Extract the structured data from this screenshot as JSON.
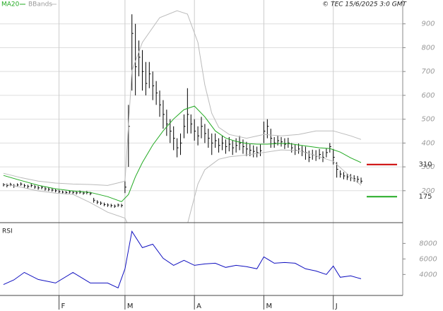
{
  "chart_data": [
    {
      "type": "ohlc",
      "copyright": "© TEC 15/6/2025 3:0 GMT",
      "xlim": [
        -1,
        115
      ],
      "xticks": [
        {
          "value": 16,
          "label": "F"
        },
        {
          "value": 35,
          "label": "M"
        },
        {
          "value": 55,
          "label": "A"
        },
        {
          "value": 75,
          "label": "M"
        },
        {
          "value": 95,
          "label": "J"
        }
      ],
      "ylim": [
        66,
        1000
      ],
      "yticks": [
        200,
        300,
        400,
        500,
        600,
        700,
        800,
        900
      ],
      "grid": true,
      "bar_color": "#000000",
      "x": [
        0,
        1,
        2,
        3,
        4,
        5,
        6,
        7,
        8,
        9,
        10,
        11,
        12,
        13,
        14,
        15,
        16,
        17,
        18,
        19,
        20,
        21,
        22,
        23,
        24,
        25,
        26,
        27,
        28,
        29,
        30,
        31,
        32,
        33,
        34,
        35,
        36,
        37,
        38,
        39,
        40,
        41,
        42,
        43,
        44,
        45,
        46,
        47,
        48,
        49,
        50,
        51,
        52,
        53,
        54,
        55,
        56,
        57,
        58,
        59,
        60,
        61,
        62,
        63,
        64,
        65,
        66,
        67,
        68,
        69,
        70,
        71,
        72,
        73,
        74,
        75,
        76,
        77,
        78,
        79,
        80,
        81,
        82,
        83,
        84,
        85,
        86,
        87,
        88,
        89,
        90,
        91,
        92,
        93,
        94,
        95,
        96,
        97,
        98,
        99,
        100,
        101,
        102,
        103
      ],
      "high": [
        232,
        230,
        233,
        228,
        231,
        235,
        229,
        225,
        229,
        224,
        220,
        221,
        216,
        214,
        211,
        207,
        203,
        200,
        199,
        202,
        200,
        198,
        201,
        197,
        199,
        195,
        170,
        160,
        155,
        150,
        147,
        145,
        142,
        146,
        145,
        245,
        560,
        940,
        900,
        830,
        790,
        740,
        740,
        700,
        660,
        620,
        580,
        540,
        500,
        470,
        420,
        440,
        520,
        630,
        520,
        500,
        470,
        510,
        480,
        460,
        440,
        440,
        420,
        430,
        415,
        425,
        410,
        420,
        430,
        415,
        405,
        395,
        390,
        385,
        395,
        490,
        500,
        460,
        425,
        430,
        425,
        420,
        422,
        400,
        395,
        398,
        388,
        385,
        368,
        372,
        370,
        375,
        365,
        378,
        400,
        375,
        320,
        285,
        278,
        272,
        270,
        265,
        262,
        255
      ],
      "low": [
        218,
        214,
        219,
        212,
        216,
        221,
        213,
        210,
        214,
        208,
        204,
        206,
        200,
        198,
        196,
        193,
        189,
        187,
        185,
        188,
        186,
        184,
        187,
        183,
        185,
        181,
        150,
        144,
        140,
        135,
        132,
        130,
        128,
        132,
        130,
        190,
        300,
        620,
        600,
        680,
        620,
        600,
        630,
        580,
        560,
        510,
        460,
        430,
        400,
        370,
        340,
        350,
        420,
        440,
        440,
        410,
        390,
        420,
        400,
        380,
        350,
        380,
        360,
        370,
        355,
        365,
        350,
        360,
        370,
        355,
        345,
        345,
        340,
        340,
        345,
        400,
        420,
        380,
        380,
        390,
        385,
        375,
        380,
        360,
        350,
        355,
        345,
        330,
        320,
        330,
        325,
        332,
        320,
        340,
        360,
        310,
        255,
        255,
        248,
        245,
        240,
        238,
        232,
        230
      ],
      "close": [
        225,
        222,
        226,
        220,
        224,
        228,
        221,
        218,
        222,
        216,
        212,
        214,
        208,
        206,
        203,
        200,
        196,
        194,
        192,
        195,
        193,
        191,
        194,
        190,
        192,
        188,
        160,
        152,
        148,
        142,
        140,
        138,
        135,
        140,
        138,
        215,
        470,
        860,
        720,
        760,
        700,
        650,
        690,
        640,
        610,
        560,
        520,
        480,
        450,
        420,
        380,
        400,
        470,
        520,
        480,
        450,
        430,
        470,
        440,
        420,
        400,
        410,
        390,
        400,
        385,
        395,
        380,
        390,
        400,
        385,
        375,
        370,
        365,
        360,
        368,
        450,
        470,
        420,
        400,
        410,
        405,
        395,
        400,
        380,
        370,
        375,
        365,
        360,
        340,
        350,
        345,
        352,
        340,
        360,
        385,
        340,
        290,
        270,
        262,
        258,
        255,
        250,
        248,
        240
      ],
      "series": [
        {
          "name": "MA20",
          "color": "#22aa22",
          "x": [
            0,
            5,
            10,
            15,
            20,
            25,
            30,
            34,
            36,
            38,
            40,
            43,
            46,
            49,
            52,
            55,
            58,
            61,
            64,
            67,
            70,
            73,
            76,
            79,
            82,
            85,
            88,
            91,
            94,
            97,
            100,
            103
          ],
          "values": [
            264,
            243,
            223,
            208,
            199,
            193,
            175,
            154,
            184,
            258,
            318,
            392,
            451,
            501,
            540,
            555,
            510,
            451,
            421,
            407,
            398,
            395,
            395,
            398,
            398,
            392,
            386,
            380,
            377,
            362,
            338,
            318
          ]
        },
        {
          "name": "BBands",
          "color": "#bbbbbb",
          "x": [
            0,
            5,
            10,
            15,
            20,
            25,
            30,
            35,
            37,
            40,
            45,
            50,
            53,
            56,
            58,
            60,
            62,
            65,
            70,
            75,
            80,
            85,
            90,
            95,
            100,
            103
          ],
          "upper": [
            273,
            255,
            240,
            232,
            228,
            226,
            222,
            240,
            703,
            822,
            926,
            955,
            941,
            822,
            644,
            525,
            466,
            436,
            420,
            436,
            430,
            436,
            451,
            451,
            430,
            415
          ],
          "lower": [
            228,
            215,
            199,
            190,
            185,
            150,
            110,
            85,
            20,
            -60,
            -120,
            -60,
            60,
            228,
            288,
            310,
            332,
            342,
            350,
            360,
            371,
            368,
            347,
            323,
            258,
            223
          ]
        }
      ],
      "levels": [
        {
          "value": 310,
          "color": "#cc0000"
        },
        {
          "value": 175,
          "color": "#22aa22"
        }
      ]
    },
    {
      "type": "line",
      "title": "RSI",
      "ylim": [
        1300,
        10400
      ],
      "yticks": [
        8000,
        6000,
        4000
      ],
      "x": [
        0,
        3,
        6,
        10,
        15,
        20,
        25,
        30,
        33,
        35,
        37,
        40,
        43,
        46,
        49,
        52,
        55,
        58,
        61,
        64,
        67,
        70,
        73,
        75,
        78,
        81,
        84,
        87,
        90,
        93,
        95,
        97,
        100,
        103
      ],
      "values": [
        2700,
        3300,
        4270,
        3360,
        2900,
        4270,
        2900,
        2900,
        2270,
        4730,
        9550,
        7450,
        7900,
        6090,
        5180,
        5820,
        5180,
        5360,
        5450,
        4910,
        5180,
        5000,
        4730,
        6270,
        5450,
        5540,
        5450,
        4730,
        4450,
        4000,
        5090,
        3640,
        3820,
        3450
      ],
      "color": "#1010c0"
    }
  ]
}
